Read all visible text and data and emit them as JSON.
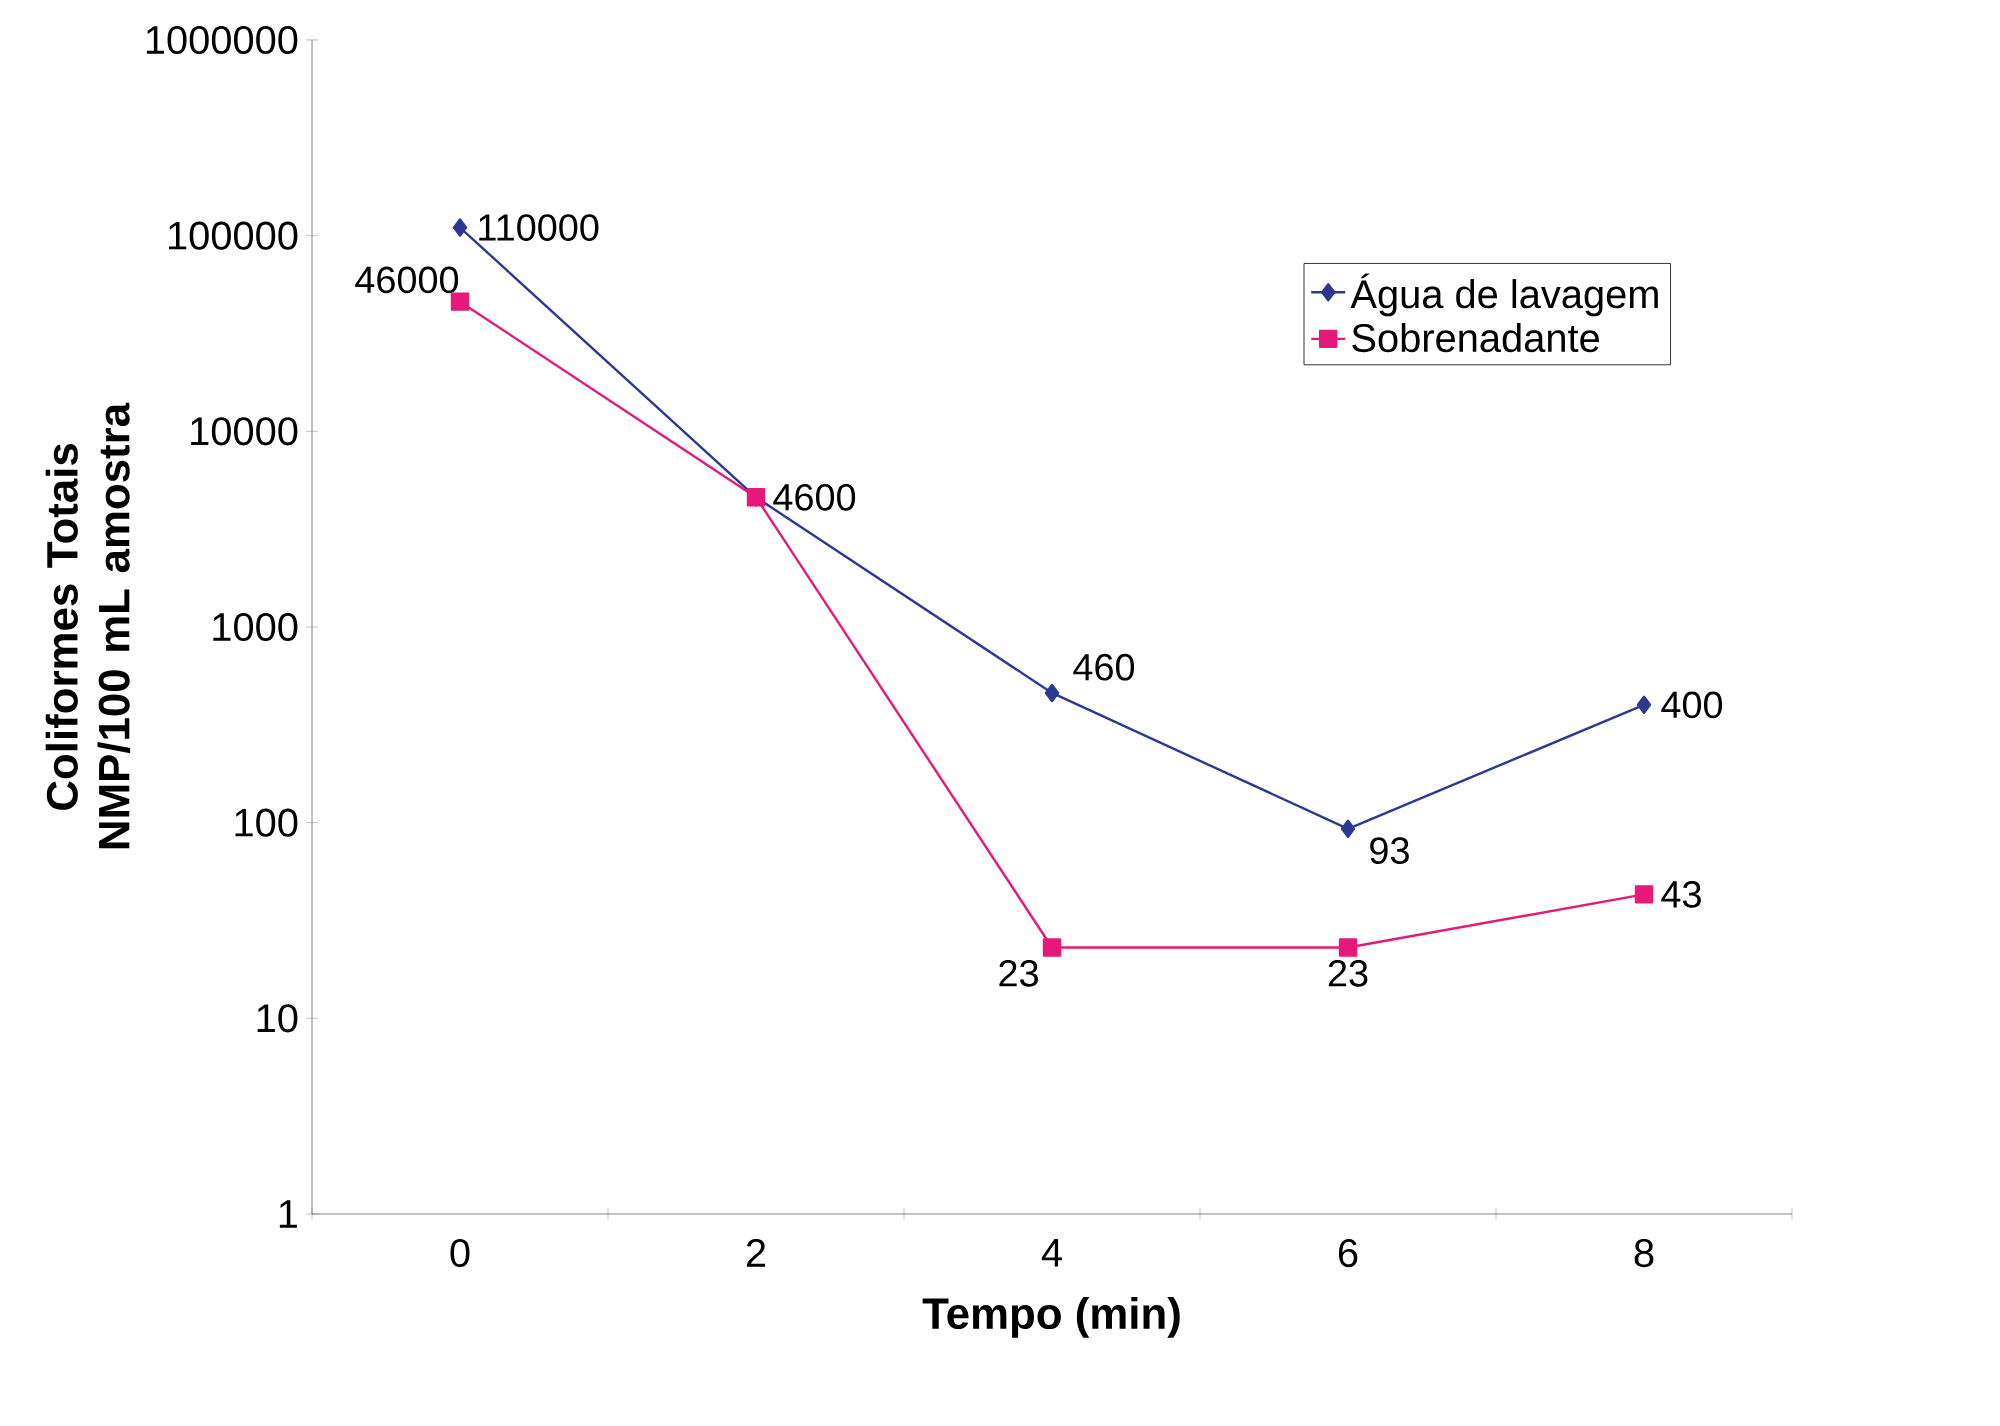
{
  "chart_data": {
    "type": "line",
    "xlabel": "Tempo (min)",
    "ylabel": "Coliformes Totais NMP/100 mL amostra",
    "categories": [
      "0",
      "2",
      "4",
      "6",
      "8"
    ],
    "series": [
      {
        "name": "Água de lavagem",
        "color": "#2b3990",
        "marker": "diamond",
        "values": [
          110000,
          4600,
          460,
          93,
          400
        ],
        "value_labels": [
          "110000",
          "4600",
          "460",
          "93",
          "400"
        ]
      },
      {
        "name": "Sobrenadante",
        "color": "#e6197a",
        "marker": "square",
        "values": [
          46000,
          4600,
          23,
          23,
          43
        ],
        "value_labels": [
          "46000",
          null,
          "23",
          "23",
          "43"
        ]
      }
    ],
    "log": "y",
    "ylim": [
      1,
      1000000
    ],
    "yticks": [
      1,
      10,
      100,
      1000,
      10000,
      100000,
      1000000
    ],
    "legend": "right"
  }
}
